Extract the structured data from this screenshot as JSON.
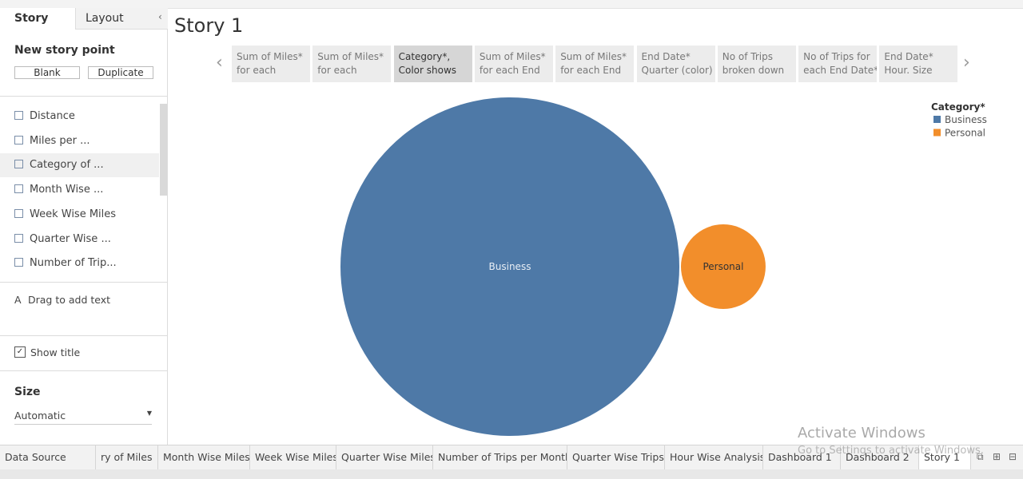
{
  "sidebar": {
    "tabs": [
      "Story",
      "Layout"
    ],
    "new_story_point": "New story point",
    "buttons": [
      "Blank",
      "Duplicate"
    ],
    "sheets": [
      "Distance",
      "Miles per ...",
      "Category of ...",
      "Month Wise ...",
      "Week Wise Miles",
      "Quarter Wise ...",
      "Number of Trip..."
    ],
    "drag_text": "Drag to add text",
    "show_title": "Show title",
    "size_label": "Size",
    "size_value": "Automatic"
  },
  "story": {
    "title": "Story 1",
    "selected": 2,
    "points": [
      [
        "Sum of Miles*",
        "for each"
      ],
      [
        "Sum of Miles*",
        "for each"
      ],
      [
        "Category*,",
        "Color shows"
      ],
      [
        "Sum of Miles*",
        "for each End"
      ],
      [
        "Sum of Miles*",
        "for each End"
      ],
      [
        "End Date*",
        "Quarter (color)"
      ],
      [
        "No of Trips",
        "broken down"
      ],
      [
        "No of Trips for",
        "each End Date*"
      ],
      [
        "End Date*",
        "Hour. Size"
      ]
    ]
  },
  "chart_data": {
    "type": "bubble",
    "legend_title": "Category*",
    "legend": "top-right",
    "categories": [
      "Business",
      "Personal"
    ],
    "values": [
      11487,
      717
    ],
    "colors": [
      "#4e79a7",
      "#f28e2b"
    ]
  },
  "tabs": {
    "items": [
      "Data Source",
      "ry of Miles",
      "Month Wise Miles",
      "Week Wise Miles",
      "Quarter Wise Miles",
      "Number of Trips per Month",
      "Quarter Wise Trips",
      "Hour Wise Analysis",
      "Dashboard 1",
      "Dashboard 2",
      "Story 1"
    ],
    "selected": 10
  },
  "watermark": {
    "title": "Activate Windows",
    "subtitle": "Go to Settings to activate Windows."
  }
}
